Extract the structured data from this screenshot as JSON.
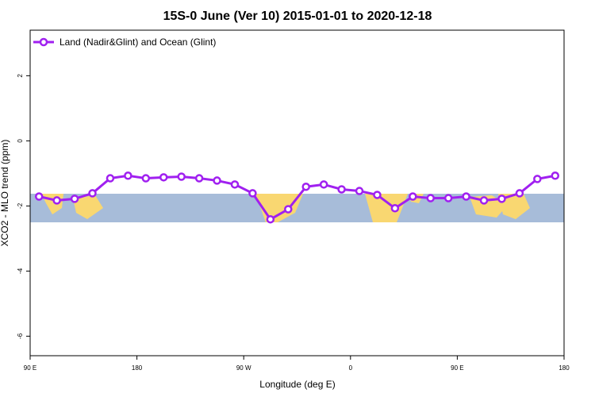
{
  "chart_data": {
    "type": "line",
    "title": "15S-0 June (Ver 10)   2015-01-01 to 2020-12-18",
    "x_label": "Longitude (deg E)",
    "y_label": "XCO2 - MLO trend (ppm)",
    "x": [
      97.5,
      112.5,
      127.5,
      142.5,
      157.5,
      172.5,
      187.5,
      202.5,
      217.5,
      232.5,
      247.5,
      262.5,
      277.5,
      292.5,
      307.5,
      322.5,
      337.5,
      352.5,
      367.5,
      382.5,
      397.5,
      412.5,
      427.5,
      442.5,
      457.5,
      472.5,
      487.5,
      502.5,
      517.5,
      532.5
    ],
    "series": [
      {
        "name": "Land (Nadir&Glint) and Ocean (Glint)",
        "color": "#a020f0",
        "values": [
          -1.71,
          -1.83,
          -1.78,
          -1.61,
          -1.15,
          -1.07,
          -1.15,
          -1.12,
          -1.1,
          -1.15,
          -1.22,
          -1.34,
          -1.61,
          -2.41,
          -2.1,
          -1.41,
          -1.34,
          -1.49,
          -1.54,
          -1.66,
          -2.07,
          -1.71,
          -1.76,
          -1.76,
          -1.71,
          -1.83,
          -1.78,
          -1.61,
          -1.17,
          -1.07
        ]
      }
    ],
    "xlim": [
      90,
      540
    ],
    "xticks": [
      {
        "value": 90,
        "label": "90 E"
      },
      180,
      {
        "value": 270,
        "label": "90 W"
      },
      {
        "value": 360,
        "label": "0"
      },
      {
        "value": 450,
        "label": "90 E"
      },
      {
        "value": 540,
        "label": "180"
      }
    ],
    "ylim": [
      -6.6,
      3.4
    ],
    "yticks": [
      -6,
      -4,
      -2,
      0,
      2
    ],
    "legend": "top-left"
  }
}
